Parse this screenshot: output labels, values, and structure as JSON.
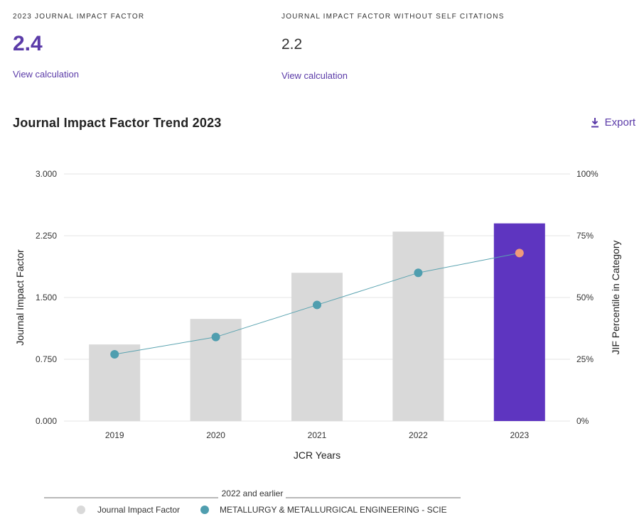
{
  "metrics": [
    {
      "label": "2023 JOURNAL IMPACT FACTOR",
      "value": "2.4",
      "link": "View calculation"
    },
    {
      "label": "JOURNAL IMPACT FACTOR WITHOUT SELF CITATIONS",
      "value": "2.2",
      "link": "View calculation"
    }
  ],
  "trend": {
    "title": "Journal Impact Factor Trend 2023",
    "export_label": "Export",
    "export_icon": "download-icon"
  },
  "colors": {
    "accent": "#5b3ba8",
    "bar_default": "#d9d9d9",
    "bar_highlight": "#5e35c0",
    "line": "#5aa3b0",
    "point": "#4f9eaf",
    "point_highlight": "#f09a7a"
  },
  "chart_data": {
    "type": "bar",
    "categories": [
      "2019",
      "2020",
      "2021",
      "2022",
      "2023"
    ],
    "series": [
      {
        "name": "Journal Impact Factor",
        "type": "bar",
        "axis": "left",
        "values": [
          0.93,
          1.24,
          1.8,
          2.3,
          2.4
        ]
      },
      {
        "name": "METALLURGY & METALLURGICAL ENGINEERING - SCIE",
        "type": "line",
        "axis": "right",
        "values": [
          27,
          34,
          47,
          60,
          68
        ]
      }
    ],
    "highlight_category": "2023",
    "xlabel": "JCR Years",
    "ylabel": "Journal Impact Factor",
    "y2label": "JIF Percentile in Category",
    "ylim": [
      0,
      3
    ],
    "y2lim": [
      0,
      100
    ],
    "yticks": [
      "0.000",
      "0.750",
      "1.500",
      "2.250",
      "3.000"
    ],
    "y2ticks": [
      "0%",
      "25%",
      "50%",
      "75%",
      "100%"
    ],
    "legend_title": "2022 and earlier",
    "legend_position": "bottom",
    "grid": true
  }
}
